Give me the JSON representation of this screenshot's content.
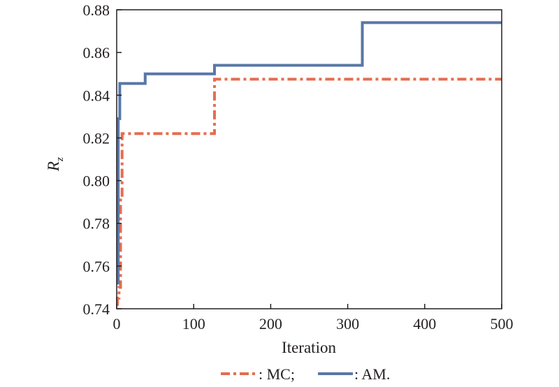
{
  "chart_data": {
    "type": "line",
    "title": "",
    "xlabel": "Iteration",
    "ylabel_main": "R",
    "ylabel_sub": "z",
    "xlim": [
      0,
      500
    ],
    "ylim": [
      0.74,
      0.88
    ],
    "xticks": [
      0,
      100,
      200,
      300,
      400,
      500
    ],
    "xtick_labels": [
      "0",
      "100",
      "200",
      "300",
      "400",
      "500"
    ],
    "yticks": [
      0.74,
      0.76,
      0.78,
      0.8,
      0.82,
      0.84,
      0.86,
      0.88
    ],
    "ytick_labels": [
      "0.74",
      "0.76",
      "0.78",
      "0.80",
      "0.82",
      "0.84",
      "0.86",
      "0.88"
    ],
    "grid": false,
    "legend_position": "bottom",
    "series": [
      {
        "name": "MC",
        "legend_label": ": MC;",
        "color": "#e56d4f",
        "style": "dashdot",
        "x": [
          0,
          1,
          1,
          3,
          3,
          5,
          5,
          7,
          7,
          127,
          127,
          500
        ],
        "y": [
          0.742,
          0.742,
          0.745,
          0.745,
          0.75,
          0.75,
          0.792,
          0.792,
          0.822,
          0.822,
          0.8475,
          0.8475
        ]
      },
      {
        "name": "AM",
        "legend_label": ": AM.",
        "color": "#5977a7",
        "style": "solid",
        "x": [
          0,
          2,
          2,
          4,
          4,
          37,
          37,
          127,
          127,
          319,
          319,
          500
        ],
        "y": [
          0.752,
          0.752,
          0.829,
          0.829,
          0.8455,
          0.8455,
          0.85,
          0.85,
          0.854,
          0.854,
          0.874,
          0.874
        ]
      }
    ]
  }
}
